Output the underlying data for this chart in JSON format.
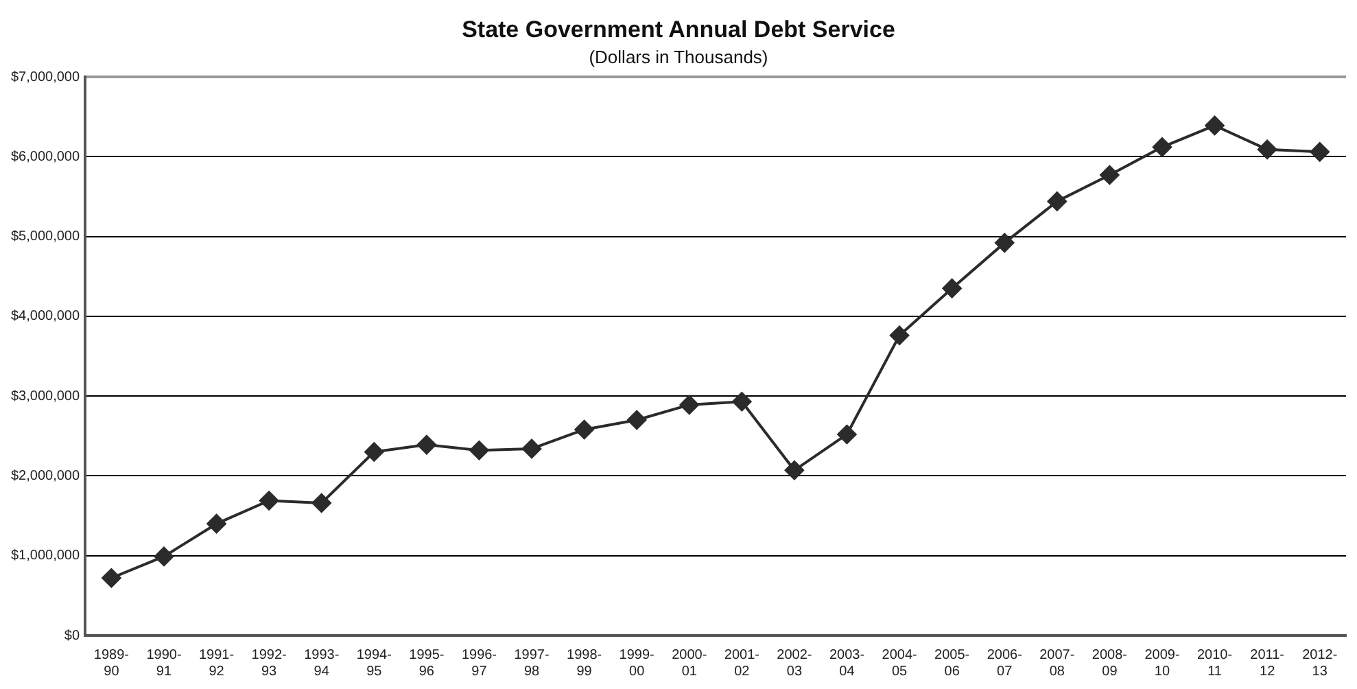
{
  "chart_data": {
    "type": "line",
    "title": "State Government Annual Debt Service",
    "subtitle": "(Dollars in Thousands)",
    "categories": [
      "1989-90",
      "1990-91",
      "1991-92",
      "1992-93",
      "1993-94",
      "1994-95",
      "1995-96",
      "1996-97",
      "1997-98",
      "1998-99",
      "1999-00",
      "2000-01",
      "2001-02",
      "2002-03",
      "2003-04",
      "2004-05",
      "2005-06",
      "2006-07",
      "2007-08",
      "2008-09",
      "2009-10",
      "2010-11",
      "2011-12",
      "2012-13"
    ],
    "series": [
      {
        "color": "#2b2b2b",
        "values": [
          720000,
          990000,
          1400000,
          1690000,
          1660000,
          2300000,
          2390000,
          2320000,
          2340000,
          2580000,
          2700000,
          2890000,
          2930000,
          2070000,
          2520000,
          3760000,
          4350000,
          4920000,
          5440000,
          5770000,
          6120000,
          6390000,
          6090000,
          6060000
        ]
      }
    ],
    "ylim": [
      0,
      7000000
    ],
    "yticks": [
      {
        "value": 0,
        "label": "$0"
      },
      {
        "value": 1000000,
        "label": "$1,000,000"
      },
      {
        "value": 2000000,
        "label": "$2,000,000"
      },
      {
        "value": 3000000,
        "label": "$3,000,000"
      },
      {
        "value": 4000000,
        "label": "$4,000,000"
      },
      {
        "value": 5000000,
        "label": "$5,000,000"
      },
      {
        "value": 6000000,
        "label": "$6,000,000"
      },
      {
        "value": 7000000,
        "label": "$7,000,000"
      }
    ],
    "grid": "y",
    "legend": false,
    "marker": "diamond",
    "line_style": "solid"
  }
}
